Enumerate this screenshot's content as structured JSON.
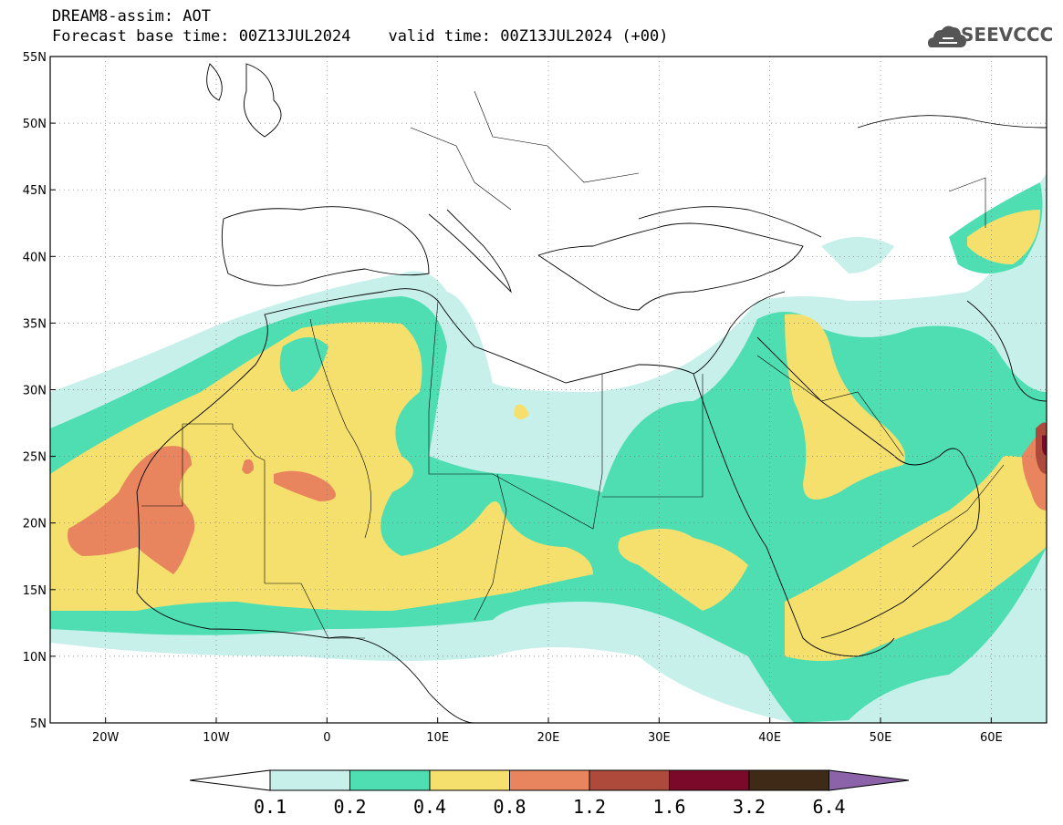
{
  "header": {
    "line1": "DREAM8-assim: AOT",
    "line2": "Forecast base time: 00Z13JUL2024    valid time: 00Z13JUL2024 (+00)",
    "logo_text": "SEEVCCC",
    "logo_icon": "cloud-icon"
  },
  "map": {
    "lat_labels": [
      "55N",
      "50N",
      "45N",
      "40N",
      "35N",
      "30N",
      "25N",
      "20N",
      "15N",
      "10N",
      "5N"
    ],
    "lon_labels": [
      "20W",
      "10W",
      "0",
      "10E",
      "20E",
      "30E",
      "40E",
      "50E",
      "60E"
    ],
    "lat_values": [
      55,
      50,
      45,
      40,
      35,
      30,
      25,
      20,
      15,
      10,
      5
    ],
    "lon_values": [
      -20,
      -10,
      0,
      10,
      20,
      30,
      40,
      50,
      60
    ],
    "lon_range": [
      -25,
      65
    ],
    "lat_range": [
      5,
      55
    ],
    "variable": "AOT",
    "grid": true
  },
  "colorbar": {
    "labels": [
      "0.1",
      "0.2",
      "0.4",
      "0.8",
      "1.2",
      "1.6",
      "3.2",
      "6.4"
    ],
    "colors": [
      "#c6f0e9",
      "#4fdeb2",
      "#f5e06e",
      "#e8855e",
      "#ad4a3c",
      "#7b0a2a",
      "#3f2a18",
      "#8c63a8"
    ],
    "below_color": "#ffffff"
  }
}
